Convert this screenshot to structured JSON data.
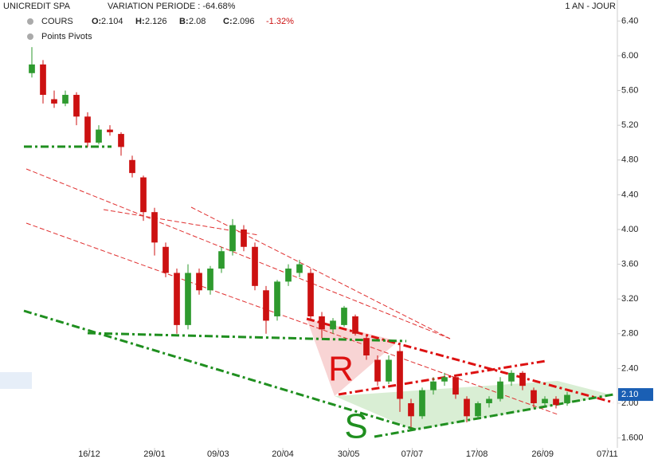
{
  "chart_data": {
    "type": "candlestick",
    "title": "UNICREDIT SPA",
    "subtitle": "VARIATION PERIODE : -64.68%",
    "period": "1 AN - JOUR",
    "series_name": "COURS",
    "indicator": "Points Pivots",
    "quote": [
      {
        "label": "O:",
        "value": 2.104
      },
      {
        "label": "H:",
        "value": 2.126
      },
      {
        "label": "B:",
        "value": 2.08
      },
      {
        "label": "C:",
        "value": 2.096
      }
    ],
    "change": {
      "value": -1.32,
      "label": "-1.32%"
    },
    "up_color": "#2e9a2e",
    "down_color": "#cc1111",
    "categories": [
      null,
      null,
      null,
      null,
      null,
      null,
      null,
      null,
      null,
      null,
      null,
      null,
      null,
      null,
      null,
      null,
      null,
      null,
      null,
      null,
      null,
      null,
      null,
      null,
      null,
      null,
      null,
      null,
      null,
      null,
      null,
      null,
      null,
      null,
      null,
      null,
      null,
      null,
      null,
      null,
      null,
      null,
      null,
      null,
      null,
      null,
      null,
      null,
      null
    ],
    "open": [
      5.8,
      5.9,
      5.5,
      5.45,
      5.55,
      5.3,
      5.0,
      5.15,
      5.1,
      4.8,
      4.6,
      4.2,
      3.8,
      3.5,
      2.9,
      3.5,
      3.3,
      3.55,
      3.75,
      4.0,
      3.8,
      3.3,
      3.0,
      3.4,
      3.5,
      3.5,
      3.0,
      2.85,
      2.9,
      3.0,
      2.75,
      2.5,
      2.25,
      2.6,
      2.0,
      1.85,
      2.15,
      2.25,
      2.3,
      2.05,
      1.85,
      2.0,
      2.05,
      2.25,
      2.35,
      2.15,
      2.0,
      2.05,
      2.0
    ],
    "high": [
      6.1,
      5.95,
      5.6,
      5.6,
      5.58,
      5.35,
      5.2,
      5.2,
      5.12,
      4.85,
      4.62,
      4.25,
      3.85,
      3.55,
      3.6,
      3.55,
      3.58,
      3.8,
      4.12,
      4.05,
      3.85,
      3.35,
      3.42,
      3.6,
      3.65,
      3.55,
      3.05,
      2.98,
      3.12,
      3.02,
      2.78,
      2.55,
      2.55,
      2.7,
      2.05,
      2.18,
      2.3,
      2.35,
      2.33,
      2.08,
      2.02,
      2.08,
      2.3,
      2.38,
      2.37,
      2.18,
      2.08,
      2.08,
      2.13
    ],
    "low": [
      5.75,
      5.45,
      5.4,
      5.42,
      5.2,
      4.95,
      4.98,
      5.08,
      4.85,
      4.6,
      4.1,
      3.7,
      3.45,
      2.8,
      2.85,
      3.25,
      3.25,
      3.5,
      3.7,
      3.75,
      3.3,
      2.8,
      2.95,
      3.35,
      3.45,
      2.95,
      2.75,
      2.8,
      2.88,
      2.78,
      2.5,
      2.2,
      2.22,
      1.9,
      1.72,
      1.82,
      2.1,
      2.2,
      2.05,
      1.78,
      1.82,
      1.95,
      2.02,
      2.2,
      2.15,
      1.95,
      1.96,
      1.94,
      1.97
    ],
    "close": [
      5.9,
      5.55,
      5.45,
      5.55,
      5.3,
      5.0,
      5.15,
      5.12,
      4.95,
      4.65,
      4.2,
      3.85,
      3.5,
      2.9,
      3.5,
      3.3,
      3.55,
      3.75,
      4.05,
      3.8,
      3.35,
      2.95,
      3.4,
      3.55,
      3.6,
      3.0,
      2.85,
      2.95,
      3.1,
      2.8,
      2.55,
      2.25,
      2.5,
      2.05,
      1.85,
      2.15,
      2.25,
      2.3,
      2.1,
      1.85,
      2.0,
      2.05,
      2.25,
      2.35,
      2.2,
      2.0,
      2.05,
      1.98,
      2.096
    ],
    "ylim": [
      1.486,
      6.642
    ],
    "yticks": [
      {
        "value": 6.4,
        "label": "6.40"
      },
      {
        "value": 6.0,
        "label": "6.00"
      },
      {
        "value": 5.6,
        "label": "5.60"
      },
      {
        "value": 5.2,
        "label": "5.20"
      },
      {
        "value": 4.8,
        "label": "4.80"
      },
      {
        "value": 4.4,
        "label": "4.40"
      },
      {
        "value": 4.0,
        "label": "4.00"
      },
      {
        "value": 3.6,
        "label": "3.60"
      },
      {
        "value": 3.2,
        "label": "3.20"
      },
      {
        "value": 2.8,
        "label": "2.80"
      },
      {
        "value": 2.4,
        "label": "2.40"
      },
      {
        "value": 2.0,
        "label": "2.00"
      },
      {
        "value": 1.6,
        "label": "1.600"
      }
    ],
    "xlim": [
      0,
      53
    ],
    "xticks": [
      {
        "value": 5.64,
        "label": "16/12"
      },
      {
        "value": 11.5,
        "label": "29/01"
      },
      {
        "value": 17.2,
        "label": "09/03"
      },
      {
        "value": 23.0,
        "label": "20/04"
      },
      {
        "value": 28.9,
        "label": "30/05"
      },
      {
        "value": 34.6,
        "label": "07/07"
      },
      {
        "value": 40.4,
        "label": "17/08"
      },
      {
        "value": 46.3,
        "label": "26/09"
      },
      {
        "value": 52.1,
        "label": "07/11"
      }
    ],
    "last_price": {
      "value": 2.1,
      "label": "2.10"
    },
    "annotations": [
      "R",
      "S"
    ]
  }
}
